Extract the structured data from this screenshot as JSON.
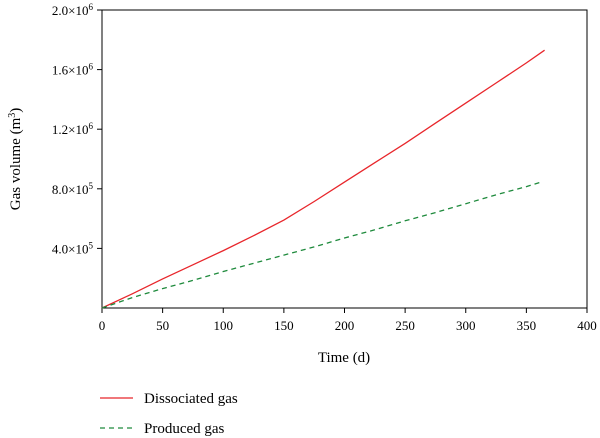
{
  "chart_data": {
    "type": "line",
    "title": "",
    "xlabel": "Time (d)",
    "ylabel": {
      "text": "Gas volume (m",
      "sup": "3",
      "close": ")"
    },
    "xlim": [
      0,
      400
    ],
    "ylim": [
      0,
      2000000
    ],
    "xticks": [
      {
        "value": 0,
        "label": "0"
      },
      {
        "value": 50,
        "label": "50"
      },
      {
        "value": 100,
        "label": "100"
      },
      {
        "value": 150,
        "label": "150"
      },
      {
        "value": 200,
        "label": "200"
      },
      {
        "value": 250,
        "label": "250"
      },
      {
        "value": 300,
        "label": "300"
      },
      {
        "value": 350,
        "label": "350"
      },
      {
        "value": 400,
        "label": "400"
      }
    ],
    "yticks": [
      {
        "value": 400000,
        "mant": "4.0×10",
        "exp": "5"
      },
      {
        "value": 800000,
        "mant": "8.0×10",
        "exp": "5"
      },
      {
        "value": 1200000,
        "mant": "1.2×10",
        "exp": "6"
      },
      {
        "value": 1600000,
        "mant": "1.6×10",
        "exp": "6"
      },
      {
        "value": 2000000,
        "mant": "2.0×10",
        "exp": "6"
      }
    ],
    "grid": false,
    "legend_position": "bottom",
    "series": [
      {
        "name": "Dissociated gas",
        "color": "#e8262b",
        "dash": "solid",
        "x": [
          0,
          25,
          50,
          75,
          100,
          125,
          150,
          175,
          200,
          225,
          250,
          275,
          300,
          325,
          350,
          365
        ],
        "y": [
          0,
          95000,
          195000,
          290000,
          385000,
          485000,
          590000,
          715000,
          845000,
          975000,
          1105000,
          1240000,
          1375000,
          1510000,
          1645000,
          1730000
        ]
      },
      {
        "name": "Produced gas",
        "color": "#1e8a3c",
        "dash": "dashed",
        "x": [
          0,
          25,
          50,
          75,
          100,
          125,
          150,
          175,
          200,
          225,
          250,
          275,
          300,
          325,
          350,
          362
        ],
        "y": [
          0,
          70000,
          130000,
          185000,
          245000,
          300000,
          355000,
          410000,
          470000,
          525000,
          585000,
          640000,
          700000,
          760000,
          815000,
          845000
        ]
      }
    ]
  }
}
